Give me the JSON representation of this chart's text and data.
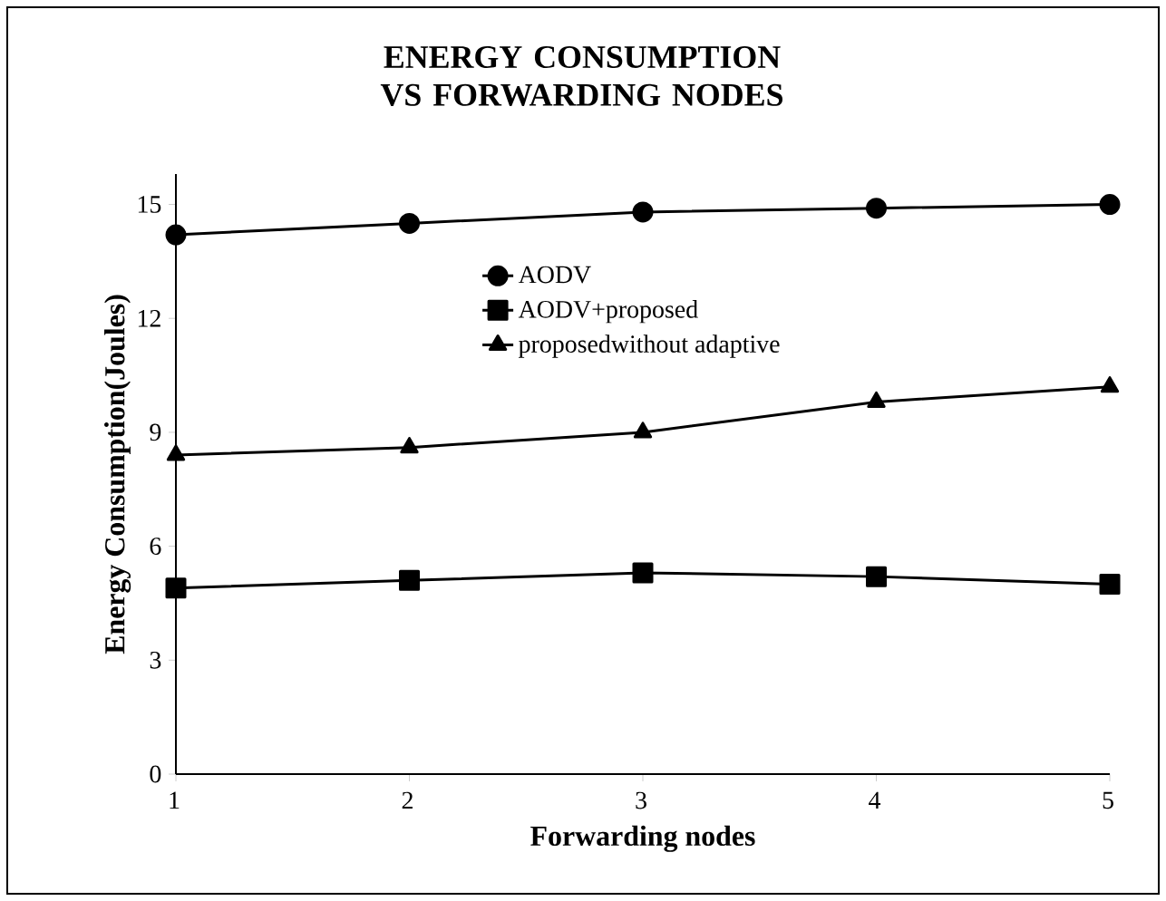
{
  "chart_data": {
    "type": "line",
    "title": "ENERGY CONSUMPTION VS FORWARDING NODES",
    "xlabel": "Forwarding nodes",
    "ylabel": "Energy Consumption(Joules)",
    "x": [
      1,
      2,
      3,
      4,
      5
    ],
    "xlim": [
      1,
      5
    ],
    "xticks": [
      1,
      2,
      3,
      4,
      5
    ],
    "ylim": [
      0,
      15.8
    ],
    "yticks": [
      0,
      3,
      6,
      9,
      12,
      15
    ],
    "grid": false,
    "legend": "top",
    "line_style": "solid",
    "series": [
      {
        "name": "AODV",
        "color": "#000000",
        "marker": "circle",
        "values": [
          14.2,
          14.5,
          14.8,
          14.9,
          15.0
        ]
      },
      {
        "name": "AODV+proposed",
        "color": "#000000",
        "marker": "square",
        "values": [
          4.9,
          5.1,
          5.3,
          5.2,
          5.0
        ]
      },
      {
        "name": "proposedwithout adaptive",
        "color": "#000000",
        "marker": "triangle",
        "values": [
          8.4,
          8.6,
          9.0,
          9.8,
          10.2
        ]
      }
    ]
  }
}
